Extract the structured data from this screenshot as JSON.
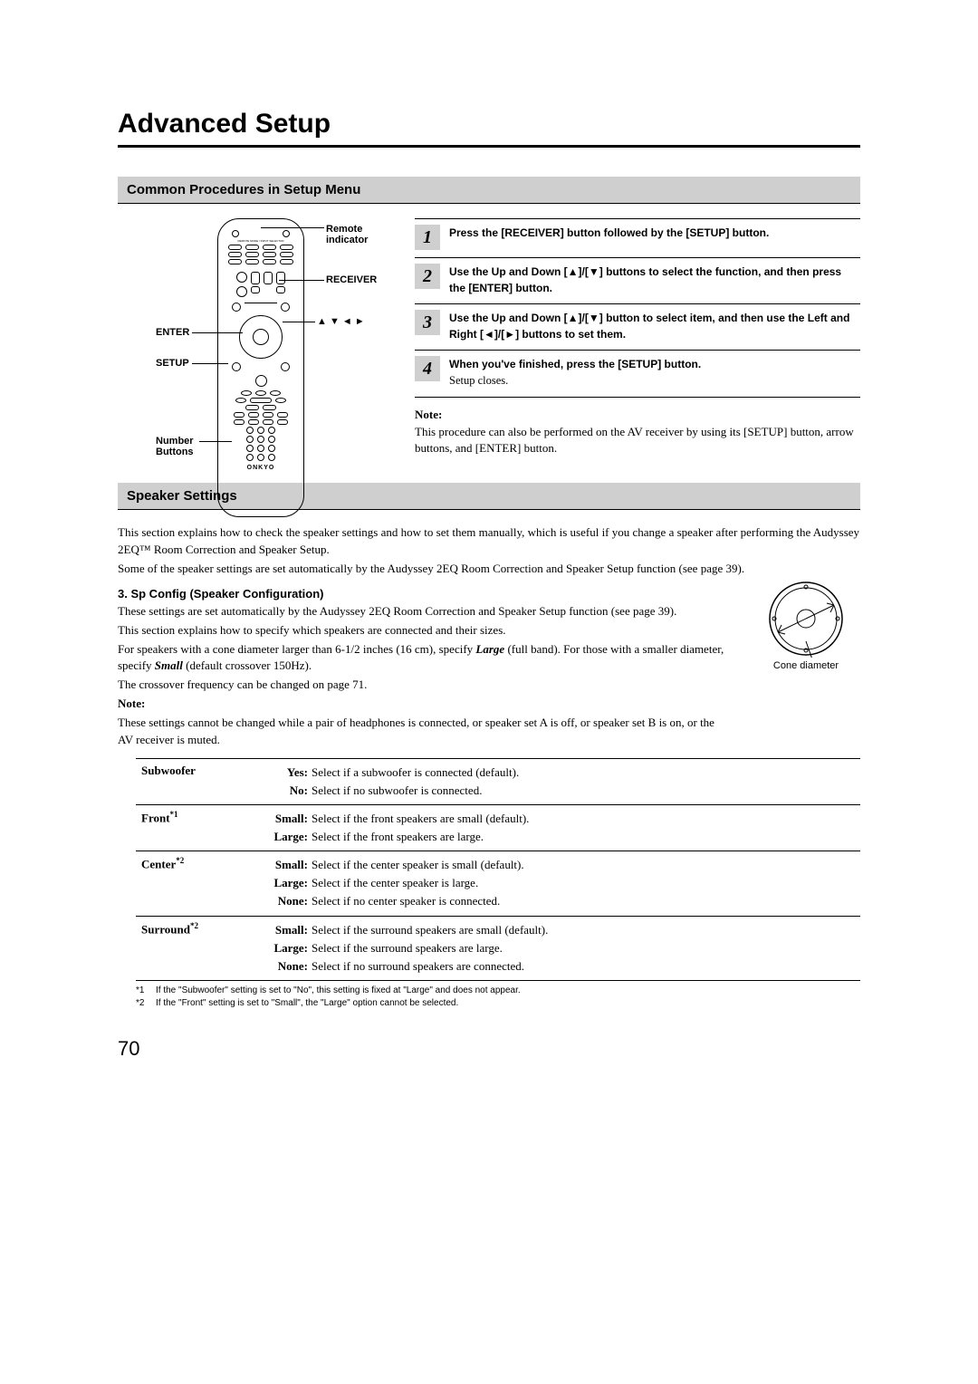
{
  "page_number": "70",
  "page_title": "Advanced Setup",
  "section1_title": "Common Procedures in Setup Menu",
  "remote": {
    "label_remote_indicator": "Remote indicator",
    "label_receiver": "RECEIVER",
    "label_enter": "ENTER",
    "label_setup": "SETUP",
    "label_arrows": "▲ ▼ ◄ ►",
    "label_number": "Number Buttons",
    "brand": "ONKYO"
  },
  "steps": [
    {
      "n": "1",
      "text": "Press the [RECEIVER] button followed by the [SETUP] button.",
      "sub": ""
    },
    {
      "n": "2",
      "text": "Use the Up and Down [▲]/[▼] buttons to select the function, and then press the [ENTER] button.",
      "sub": ""
    },
    {
      "n": "3",
      "text": "Use the Up and Down [▲]/[▼] button to select item, and then use the Left and Right [◄]/[►] buttons to set them.",
      "sub": ""
    },
    {
      "n": "4",
      "text": "When you've finished, press the [SETUP] button.",
      "sub": "Setup closes."
    }
  ],
  "steps_note_label": "Note:",
  "steps_note_text": "This procedure can also be performed on the AV receiver by using its [SETUP] button, arrow buttons, and [ENTER] button.",
  "section2_title": "Speaker Settings",
  "speaker_intro1": "This section explains how to check the speaker settings and how to set them manually, which is useful if you change a speaker after performing the Audyssey 2EQ™ Room Correction and Speaker Setup.",
  "speaker_intro2": "Some of the speaker settings are set automatically by the Audyssey 2EQ Room Correction and Speaker Setup function (see page 39).",
  "spconfig_heading": "3. Sp Config (Speaker Configuration)",
  "spconfig_p1": "These settings are set automatically by the Audyssey 2EQ Room Correction and Speaker Setup function (see page 39).",
  "spconfig_p2": "This section explains how to specify which speakers are connected and their sizes.",
  "spconfig_p3_a": "For speakers with a cone diameter larger than 6-1/2 inches (16 cm), specify ",
  "spconfig_p3_b": "Large",
  "spconfig_p3_c": " (full band). For those with a smaller diameter, specify ",
  "spconfig_p3_d": "Small",
  "spconfig_p3_e": " (default crossover 150Hz).",
  "spconfig_p4": "The crossover frequency can be changed on page 71.",
  "spconfig_note_label": "Note:",
  "spconfig_note_text": "These settings cannot be changed while a pair of headphones is connected, or speaker set A is off, or speaker set B is on, or the AV receiver is muted.",
  "cone_caption": "Cone diameter",
  "table": [
    {
      "param": "Subwoofer",
      "sup": "",
      "opts": [
        {
          "k": "Yes:",
          "v": "Select if a subwoofer is connected (default)."
        },
        {
          "k": "No:",
          "v": "Select if no subwoofer is connected."
        }
      ]
    },
    {
      "param": "Front",
      "sup": "*1",
      "opts": [
        {
          "k": "Small:",
          "v": "Select if the front speakers are small (default)."
        },
        {
          "k": "Large:",
          "v": "Select if the front speakers are large."
        }
      ]
    },
    {
      "param": "Center",
      "sup": "*2",
      "opts": [
        {
          "k": "Small:",
          "v": "Select if the center speaker is small (default)."
        },
        {
          "k": "Large:",
          "v": "Select if the center speaker is large."
        },
        {
          "k": "None:",
          "v": "Select if no center speaker is connected."
        }
      ]
    },
    {
      "param": "Surround",
      "sup": "*2",
      "opts": [
        {
          "k": "Small:",
          "v": "Select if the surround speakers are small (default)."
        },
        {
          "k": "Large:",
          "v": "Select if the surround speakers are large."
        },
        {
          "k": "None:",
          "v": "Select if no surround speakers are connected."
        }
      ]
    }
  ],
  "footnotes": [
    {
      "k": "*1",
      "v": "If the \"Subwoofer\" setting is set to \"No\", this setting is fixed at \"Large\" and does not appear."
    },
    {
      "k": "*2",
      "v": "If the \"Front\" setting is set to \"Small\", the \"Large\" option cannot be selected."
    }
  ]
}
